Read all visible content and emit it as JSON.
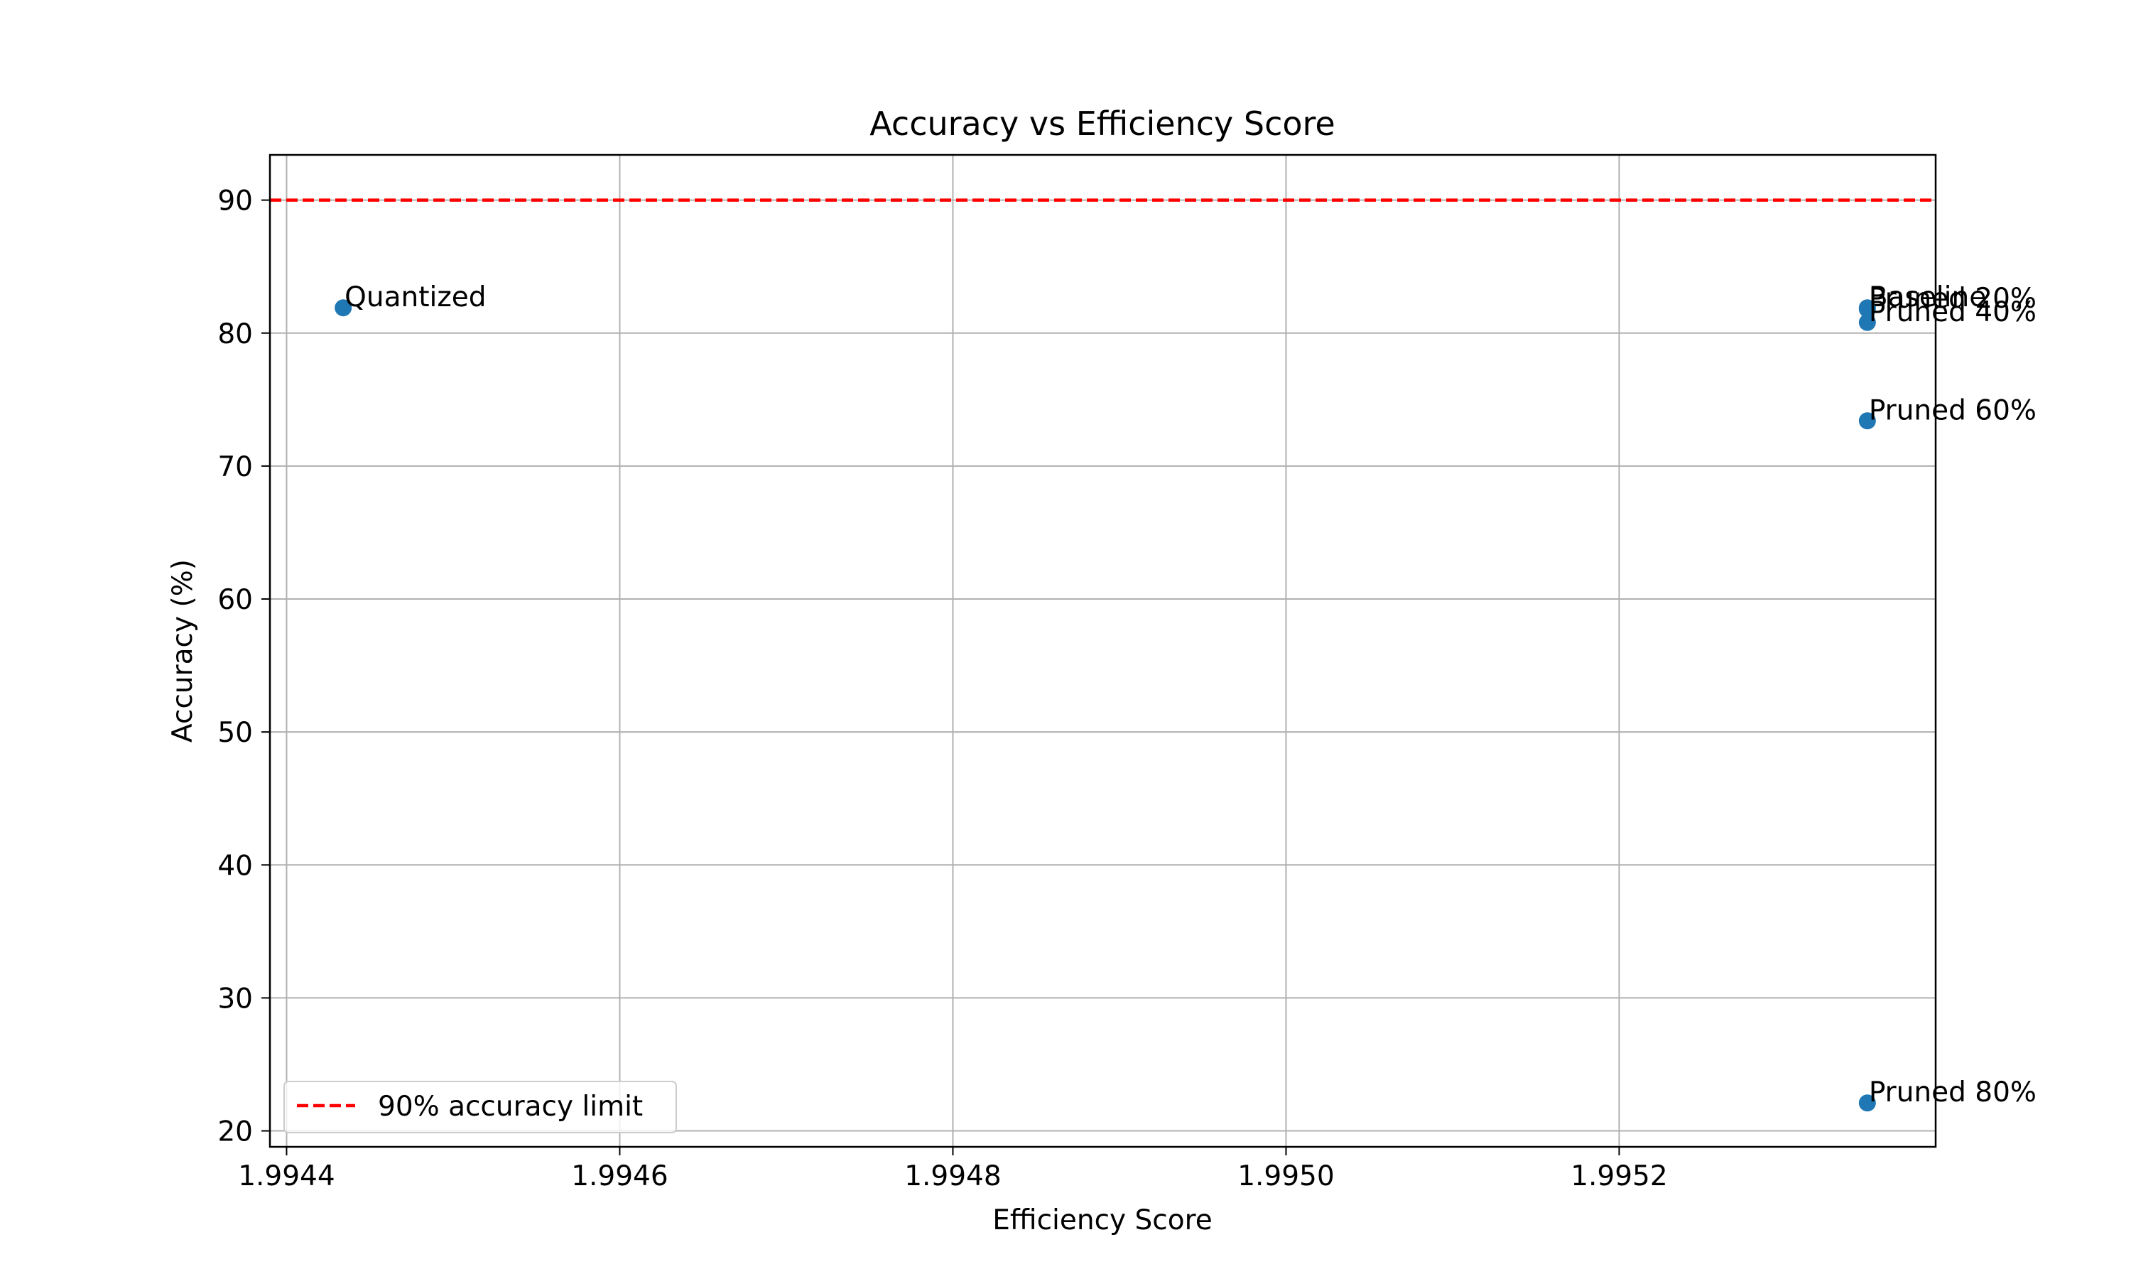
{
  "chart_data": {
    "type": "scatter",
    "title": "Accuracy vs Efficiency Score",
    "xlabel": "Efficiency Score",
    "ylabel": "Accuracy (%)",
    "xlim": [
      1.99439,
      1.99539
    ],
    "ylim": [
      18.8,
      93.4
    ],
    "x_ticks": [
      1.9944,
      1.9946,
      1.9948,
      1.995,
      1.9952
    ],
    "x_tick_labels": [
      "1.9944",
      "1.9946",
      "1.9948",
      "1.9950",
      "1.9952"
    ],
    "y_ticks": [
      20,
      30,
      40,
      50,
      60,
      70,
      80,
      90
    ],
    "y_tick_labels": [
      "20",
      "30",
      "40",
      "50",
      "60",
      "70",
      "80",
      "90"
    ],
    "grid": true,
    "points": [
      {
        "label": "Quantized",
        "x": 1.994434,
        "y": 81.9
      },
      {
        "label": "Baseline",
        "x": 1.995349,
        "y": 81.9
      },
      {
        "label": "Pruned 20%",
        "x": 1.995349,
        "y": 81.8
      },
      {
        "label": "Pruned 40%",
        "x": 1.995349,
        "y": 80.8
      },
      {
        "label": "Pruned 60%",
        "x": 1.995349,
        "y": 73.4
      },
      {
        "label": "Pruned 80%",
        "x": 1.995349,
        "y": 22.1
      }
    ],
    "point_color": "#1f77b4",
    "reference_line": {
      "y": 90,
      "label": "90% accuracy limit",
      "color": "#ff0000",
      "style": "dashed"
    },
    "legend": {
      "position": "lower-left",
      "entries": [
        "90% accuracy limit"
      ]
    }
  }
}
